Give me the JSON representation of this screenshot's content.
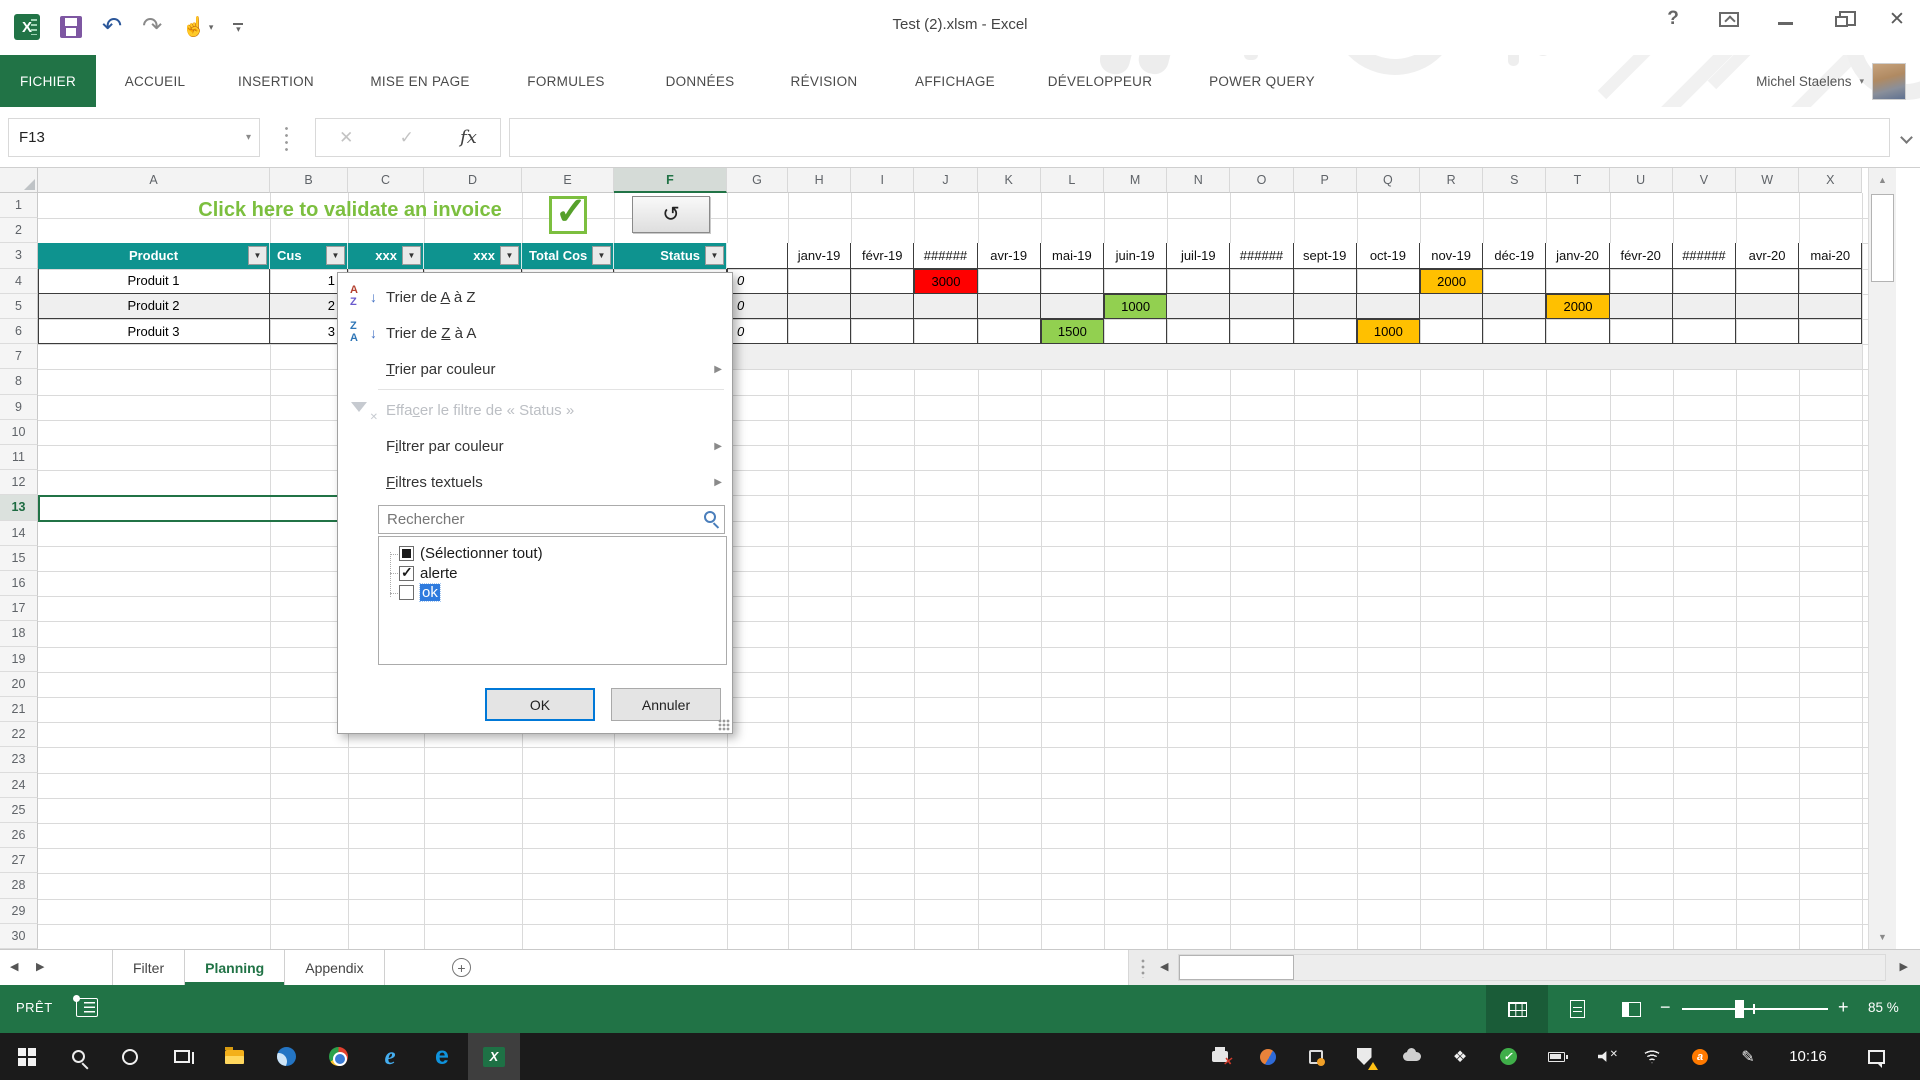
{
  "window": {
    "title": "Test (2).xlsm - Excel",
    "quick_access_icons": [
      "excel-icon",
      "save-icon",
      "undo-icon",
      "redo-icon",
      "touch-mode-icon",
      "customize-quick-access-icon"
    ],
    "control_icons": [
      "help-icon",
      "ribbon-display-options-icon",
      "minimize-icon",
      "restore-icon",
      "close-icon"
    ]
  },
  "ribbon": {
    "tabs": [
      {
        "label": "FICHIER",
        "active": true
      },
      {
        "label": "ACCUEIL"
      },
      {
        "label": "INSERTION"
      },
      {
        "label": "MISE EN PAGE"
      },
      {
        "label": "FORMULES"
      },
      {
        "label": "DONNÉES"
      },
      {
        "label": "RÉVISION"
      },
      {
        "label": "AFFICHAGE"
      },
      {
        "label": "DÉVELOPPEUR"
      },
      {
        "label": "POWER QUERY"
      }
    ],
    "user_name": "Michel Staelens"
  },
  "formula_bar": {
    "name_box": "F13",
    "fx_label": "fx",
    "formula_value": ""
  },
  "grid": {
    "selected_cell": "F13",
    "selected_column": "F",
    "selected_row": 13,
    "row_count": 30,
    "columns": [
      "A",
      "B",
      "C",
      "D",
      "E",
      "F",
      "G",
      "H",
      "I",
      "J",
      "K",
      "L",
      "M",
      "N",
      "O",
      "P",
      "Q",
      "R",
      "S",
      "T",
      "U",
      "V",
      "W",
      "X"
    ],
    "banner_text": "Click here to validate an invoice",
    "refresh_button_glyph": "↺",
    "table": {
      "headers": [
        "Product",
        "Cus",
        "xxx",
        "xxx",
        "Total Cos",
        "Status"
      ],
      "rows": [
        {
          "product": "Produit 1",
          "cus": "1",
          "g_value": "0"
        },
        {
          "product": "Produit 2",
          "cus": "2",
          "g_value": "0"
        },
        {
          "product": "Produit 3",
          "cus": "3",
          "g_value": "0"
        }
      ]
    },
    "months": [
      "janv-19",
      "févr-19",
      "######",
      "avr-19",
      "mai-19",
      "juin-19",
      "juil-19",
      "######",
      "sept-19",
      "oct-19",
      "nov-19",
      "déc-19",
      "janv-20",
      "févr-20",
      "######",
      "avr-20",
      "mai-20"
    ],
    "planning_cells": [
      {
        "row": 4,
        "month_index": 2,
        "value": "3000",
        "color": "#ff0000"
      },
      {
        "row": 4,
        "month_index": 10,
        "value": "2000",
        "color": "#ffc000"
      },
      {
        "row": 5,
        "month_index": 5,
        "value": "1000",
        "color": "#92d050"
      },
      {
        "row": 5,
        "month_index": 12,
        "value": "2000",
        "color": "#ffc000"
      },
      {
        "row": 6,
        "month_index": 4,
        "value": "1500",
        "color": "#92d050"
      },
      {
        "row": 6,
        "month_index": 9,
        "value": "1000",
        "color": "#ffc000"
      }
    ],
    "colors": {
      "table_header": "#0e938f",
      "band": "#efefef",
      "selection_green": "#217346",
      "banner_green": "#7cbf3f"
    }
  },
  "filter_menu": {
    "items": [
      {
        "label": "Trier de A à Z",
        "underline": 9,
        "icon": "sort-az-icon"
      },
      {
        "label": "Trier de Z à A",
        "underline": 9,
        "icon": "sort-za-icon"
      },
      {
        "label": "Trier par couleur",
        "underline": 0,
        "submenu": true
      },
      {
        "separator": true
      },
      {
        "label": "Effacer le filtre de « Status »",
        "underline": 4,
        "icon": "clear-filter-icon",
        "disabled": true
      },
      {
        "label": "Filtrer par couleur",
        "underline": 1,
        "submenu": true
      },
      {
        "label": "Filtres textuels",
        "underline": 0,
        "submenu": true
      }
    ],
    "icon_glyphs": {
      "sort-az-icon": [
        "A",
        "Z"
      ],
      "sort-za-icon": [
        "Z",
        "A"
      ],
      "sort_arrow": "↓"
    },
    "search_placeholder": "Rechercher",
    "checkbox_items": [
      {
        "label": "(Sélectionner tout)",
        "state": "indeterminate"
      },
      {
        "label": "alerte",
        "state": "checked"
      },
      {
        "label": "ok",
        "state": "unchecked",
        "highlighted": true
      }
    ],
    "ok_label": "OK",
    "cancel_label": "Annuler"
  },
  "sheet_tabs": {
    "tabs": [
      "Filter",
      "Planning",
      "Appendix"
    ],
    "active": "Planning"
  },
  "status_bar": {
    "mode": "PRÊT",
    "view_buttons": [
      "normal-view-icon",
      "page-layout-view-icon",
      "page-break-preview-icon"
    ],
    "zoom_percent": "85 %"
  },
  "taskbar": {
    "left_icons": [
      "start-icon",
      "search-icon",
      "cortana-icon",
      "task-view-icon",
      "file-explorer-icon",
      "thunderbird-icon",
      "chrome-icon",
      "internet-explorer-icon",
      "edge-icon",
      "excel-taskbar-icon"
    ],
    "active_icon": "excel-taskbar-icon",
    "tray_icons": [
      "print-error-icon",
      "orange-app-icon",
      "badge-app-icon",
      "security-shield-icon",
      "onedrive-icon",
      "dropbox-icon",
      "antivirus-ok-icon",
      "battery-icon",
      "volume-muted-icon",
      "wifi-icon",
      "avast-icon",
      "pen-icon"
    ],
    "clock": "10:16",
    "notification_icon": "action-center-icon"
  }
}
